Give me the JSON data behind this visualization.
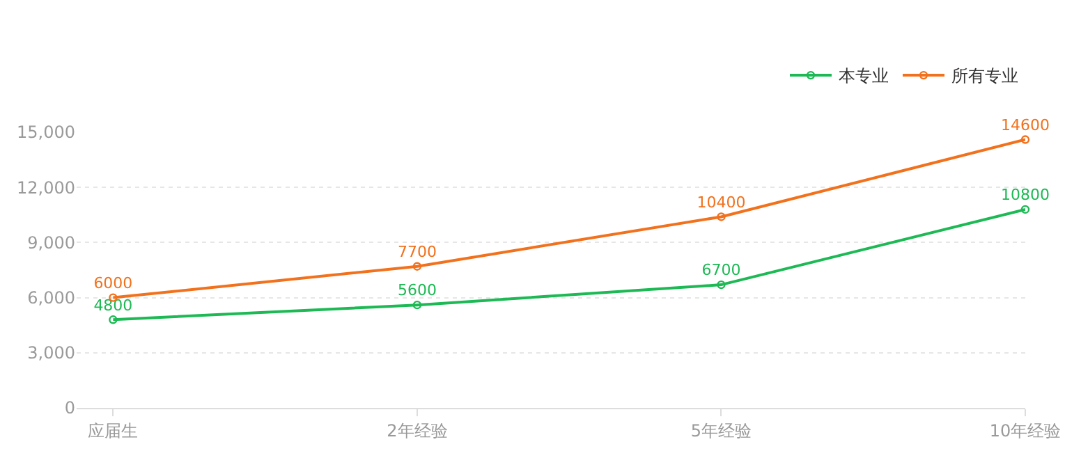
{
  "chart_data": {
    "type": "line",
    "categories": [
      "应届生",
      "2年经验",
      "5年经验",
      "10年经验"
    ],
    "series": [
      {
        "name": "本专业",
        "color": "#1db954",
        "values": [
          4800,
          5600,
          6700,
          10800
        ]
      },
      {
        "name": "所有专业",
        "color": "#f2711c",
        "values": [
          6000,
          7700,
          10400,
          14600
        ]
      }
    ],
    "ylim": [
      0,
      15000
    ],
    "yticks": [
      {
        "value": 0,
        "label": "0"
      },
      {
        "value": 3000,
        "label": "3,000"
      },
      {
        "value": 6000,
        "label": "6,000"
      },
      {
        "value": 9000,
        "label": "9,000"
      },
      {
        "value": 12000,
        "label": "12,000"
      },
      {
        "value": 15000,
        "label": "15,000"
      }
    ],
    "grid": "y",
    "legend": "top right",
    "marker": "circle",
    "line_style": "solid",
    "data_labels": true
  }
}
